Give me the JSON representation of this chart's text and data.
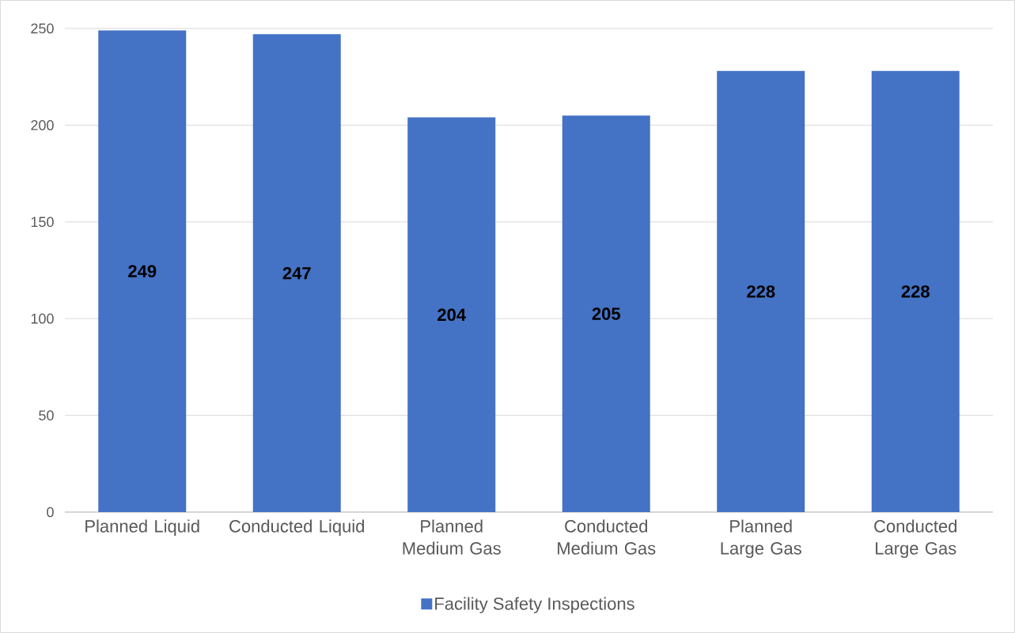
{
  "chart_data": {
    "type": "bar",
    "categories": [
      "Planned Liquid",
      "Conducted Liquid",
      "Planned Medium Gas",
      "Conducted Medium Gas",
      "Planned Large Gas",
      "Conducted Large Gas"
    ],
    "series": [
      {
        "name": "Facility Safety Inspections",
        "color": "#4472c4",
        "values": [
          249,
          247,
          204,
          205,
          228,
          228
        ]
      }
    ],
    "ylim": [
      0,
      250
    ],
    "yticks": [
      0,
      50,
      100,
      150,
      200,
      250
    ],
    "grid": "y",
    "legend": "bottom",
    "data_labels": true
  }
}
